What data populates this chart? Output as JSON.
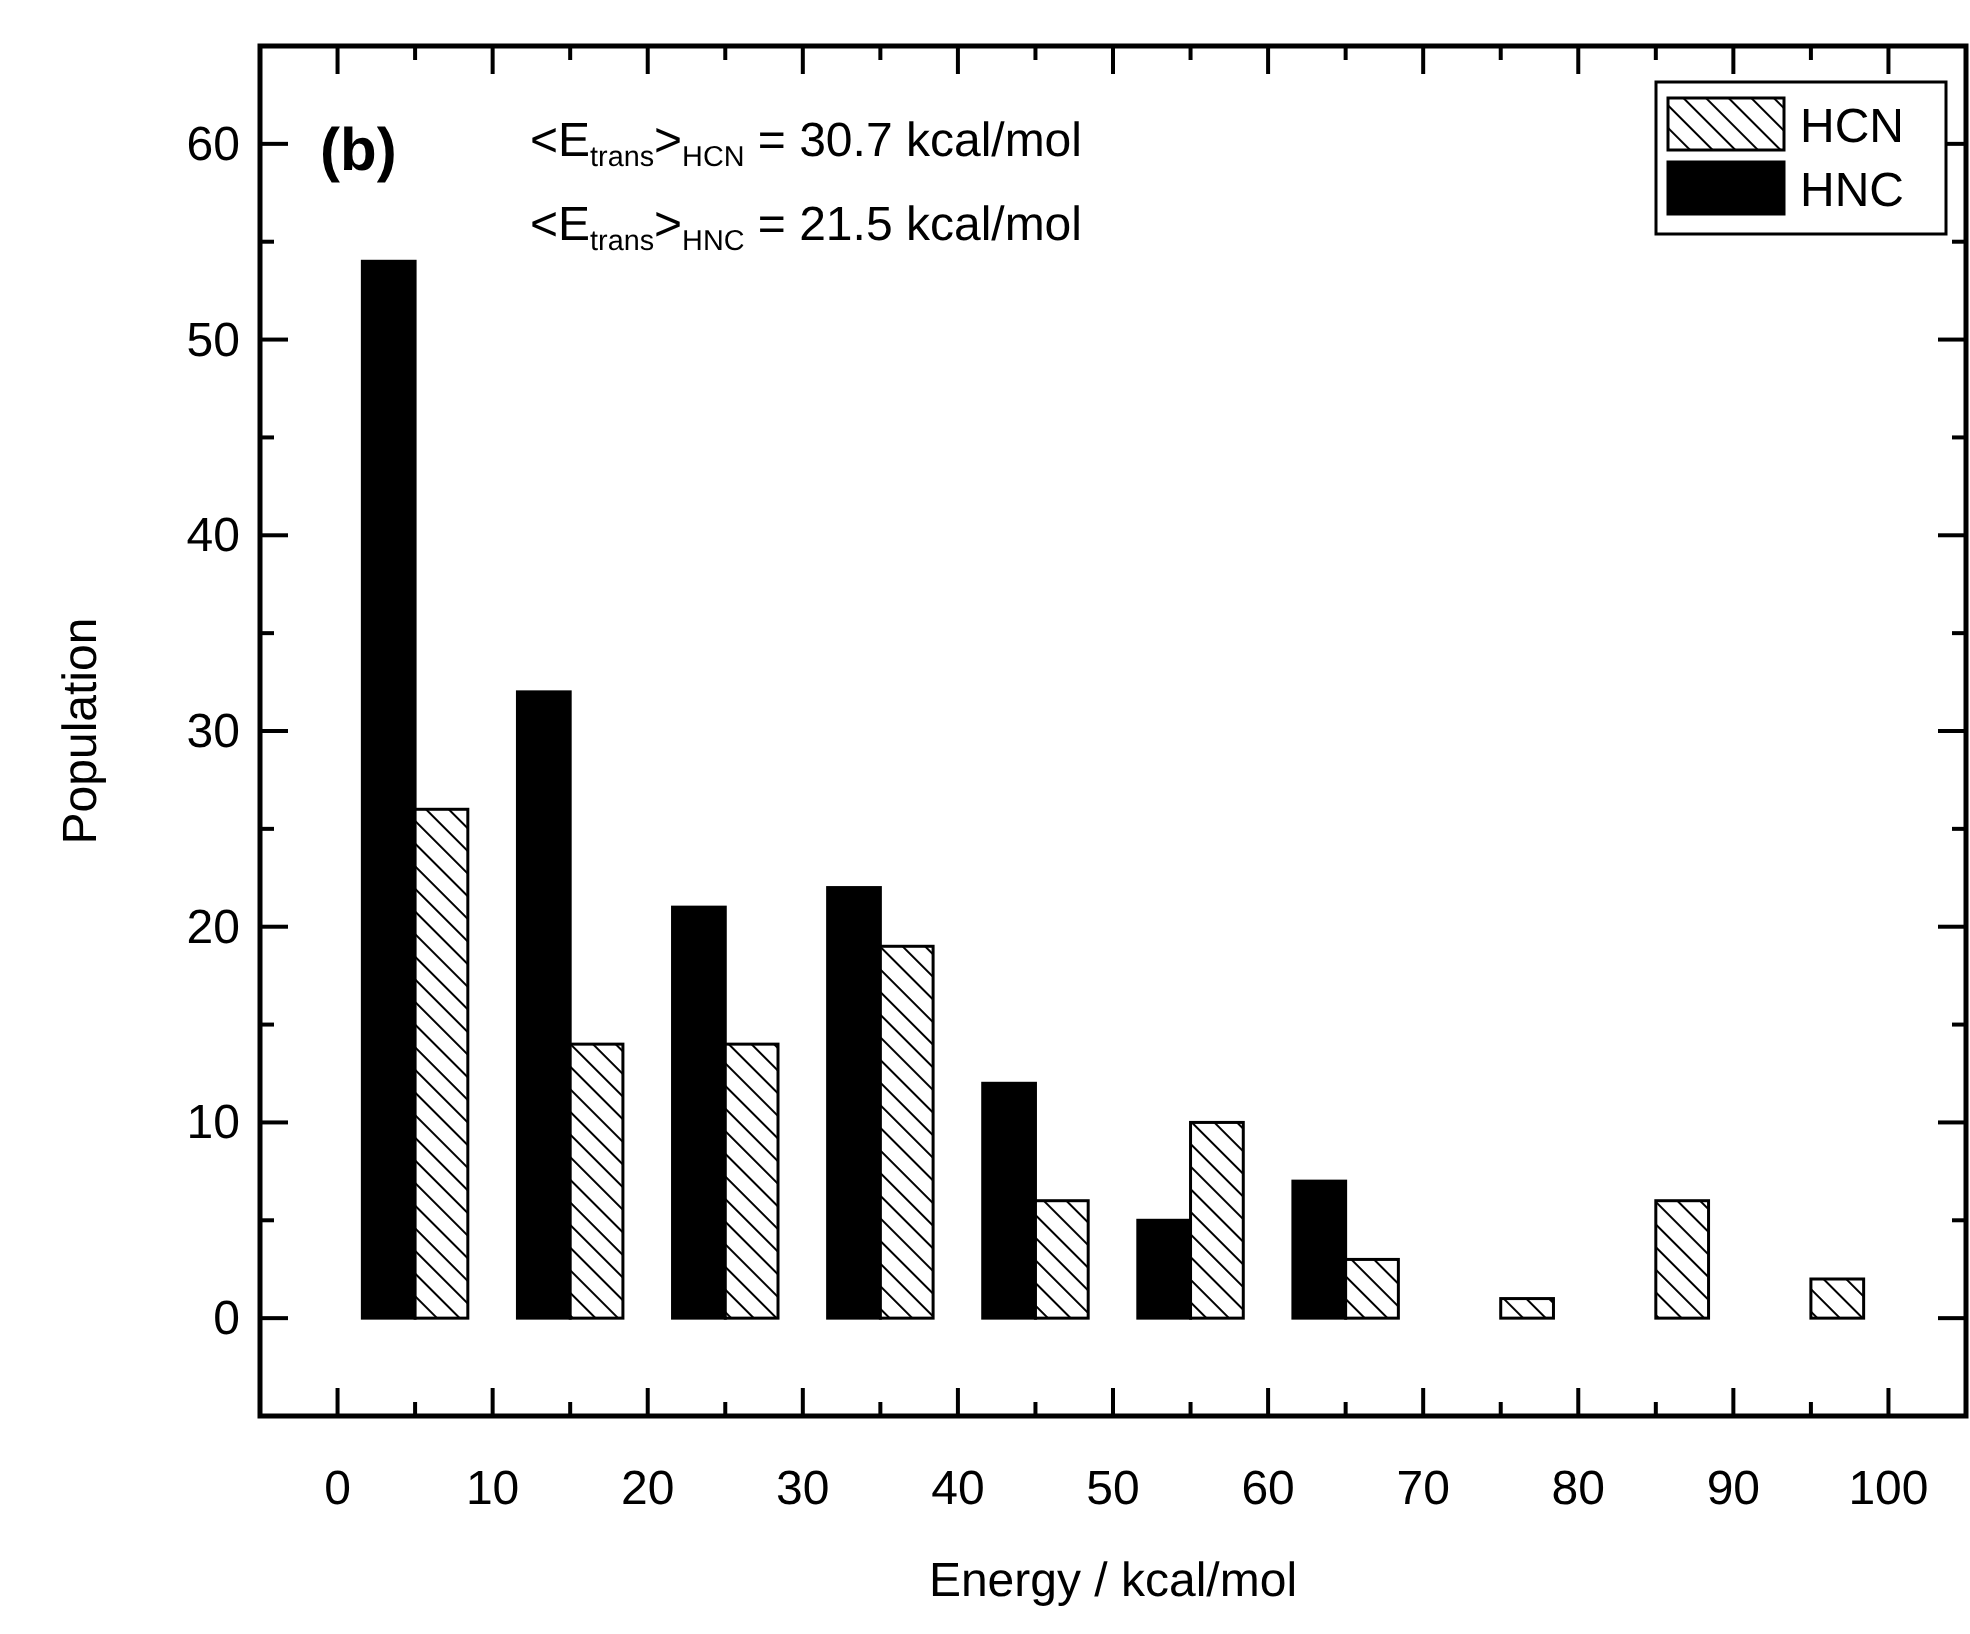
{
  "chart_data": {
    "type": "bar",
    "xlabel": "Energy / kcal/mol",
    "ylabel": "Population",
    "x": [
      5,
      15,
      25,
      35,
      45,
      55,
      65,
      75,
      85,
      95
    ],
    "series": [
      {
        "name": "HNC",
        "color": "#000000",
        "values": [
          54,
          32,
          21,
          22,
          12,
          5,
          7,
          0,
          0,
          0
        ]
      },
      {
        "name": "HCN",
        "color": "#ffffff",
        "values": [
          26,
          14,
          14,
          19,
          6,
          10,
          3,
          1,
          6,
          2
        ]
      }
    ],
    "xlim": [
      -5,
      105
    ],
    "xticks": [
      0,
      10,
      20,
      30,
      40,
      50,
      60,
      70,
      80,
      90,
      100
    ],
    "ylim": [
      -5,
      65
    ],
    "yticks": [
      0,
      10,
      20,
      30,
      40,
      50,
      60
    ],
    "annotations": [
      "(b)",
      "<E$_{trans}$>$_{HCN}$ = 30.7 kcal/mol",
      "<E$_{trans}$>$_{HNC}$ = 21.5 kcal/mol"
    ],
    "legend": "top right",
    "grid": false
  }
}
